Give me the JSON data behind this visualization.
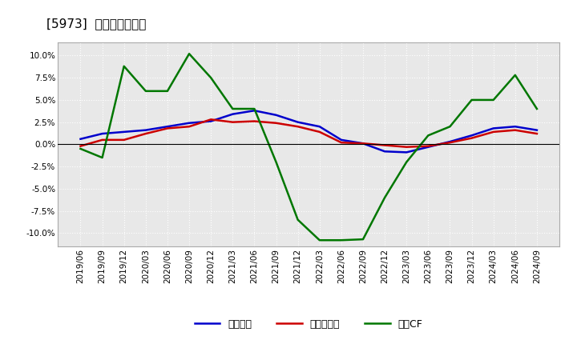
{
  "title": "[5973]  マージンの推移",
  "x_labels": [
    "2019/06",
    "2019/09",
    "2019/12",
    "2020/03",
    "2020/06",
    "2020/09",
    "2020/12",
    "2021/03",
    "2021/06",
    "2021/09",
    "2021/12",
    "2022/03",
    "2022/06",
    "2022/09",
    "2022/12",
    "2023/03",
    "2023/06",
    "2023/09",
    "2023/12",
    "2024/03",
    "2024/06",
    "2024/09"
  ],
  "keijo_rieki": [
    0.006,
    0.012,
    0.014,
    0.016,
    0.02,
    0.024,
    0.026,
    0.034,
    0.038,
    0.033,
    0.025,
    0.02,
    0.005,
    0.001,
    -0.008,
    -0.009,
    -0.003,
    0.003,
    0.01,
    0.018,
    0.02,
    0.016
  ],
  "touki_jun_rieki": [
    -0.002,
    0.005,
    0.005,
    0.012,
    0.018,
    0.02,
    0.028,
    0.025,
    0.026,
    0.024,
    0.02,
    0.014,
    0.002,
    0.001,
    -0.001,
    -0.003,
    -0.002,
    0.002,
    0.007,
    0.014,
    0.016,
    0.012
  ],
  "eigyo_cf": [
    -0.005,
    -0.015,
    0.088,
    0.06,
    0.06,
    0.102,
    0.075,
    0.04,
    0.04,
    -0.02,
    -0.085,
    -0.108,
    -0.108,
    -0.107,
    -0.06,
    -0.02,
    0.01,
    0.02,
    0.05,
    0.05,
    0.078,
    0.04
  ],
  "keijo_color": "#0000cc",
  "touki_color": "#cc0000",
  "eigyo_color": "#007700",
  "ylim_min": -0.115,
  "ylim_max": 0.115,
  "yticks": [
    -0.1,
    -0.075,
    -0.05,
    -0.025,
    0.0,
    0.025,
    0.05,
    0.075,
    0.1
  ],
  "ytick_labels": [
    "-10.0%",
    "-7.5%",
    "-5.0%",
    "-2.5%",
    "0.0%",
    "2.5%",
    "5.0%",
    "7.5%",
    "10.0%"
  ],
  "legend_labels": [
    "経常利益",
    "当期純利益",
    "営業CF"
  ],
  "bg_color": "#ffffff",
  "plot_bg_color": "#e8e8e8",
  "grid_color": "#ffffff",
  "grid_linestyle": "dotted",
  "line_width": 1.8,
  "title_fontsize": 11,
  "tick_fontsize": 7.5,
  "legend_fontsize": 9
}
